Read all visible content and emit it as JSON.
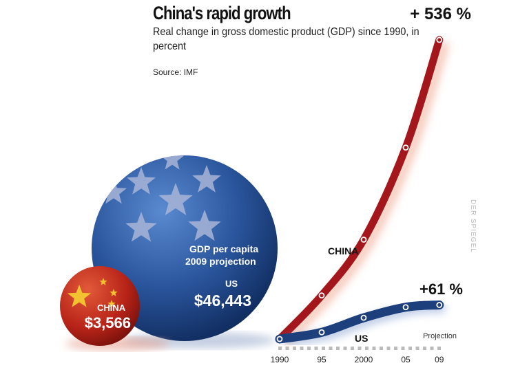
{
  "chart_data": {
    "type": "line",
    "title": "China's rapid growth",
    "subtitle": "Real change in gross domestic product (GDP) since 1990, in percent",
    "source": "Source: IMF",
    "x": [
      1990,
      1995,
      2000,
      2005,
      2009
    ],
    "x_tick_labels": [
      "1990",
      "95",
      "2000",
      "05",
      "09"
    ],
    "projection_label": "Projection",
    "ylim": [
      0,
      540
    ],
    "grid": false,
    "series": [
      {
        "name": "CHINA",
        "color": "#a3161c",
        "values": [
          0,
          78,
          178,
          343,
          536
        ],
        "end_label": "+ 536 %"
      },
      {
        "name": "US",
        "color": "#1d3f7c",
        "values": [
          0,
          12,
          38,
          57,
          61
        ],
        "end_label": "+61 %"
      }
    ],
    "gdp_per_capita": {
      "label_line1": "GDP per capita",
      "label_line2": "2009 projection",
      "us": {
        "label": "US",
        "value": "$46,443"
      },
      "china": {
        "label": "CHINA",
        "value": "$3,566"
      }
    },
    "watermark": "DER SPIEGEL"
  }
}
